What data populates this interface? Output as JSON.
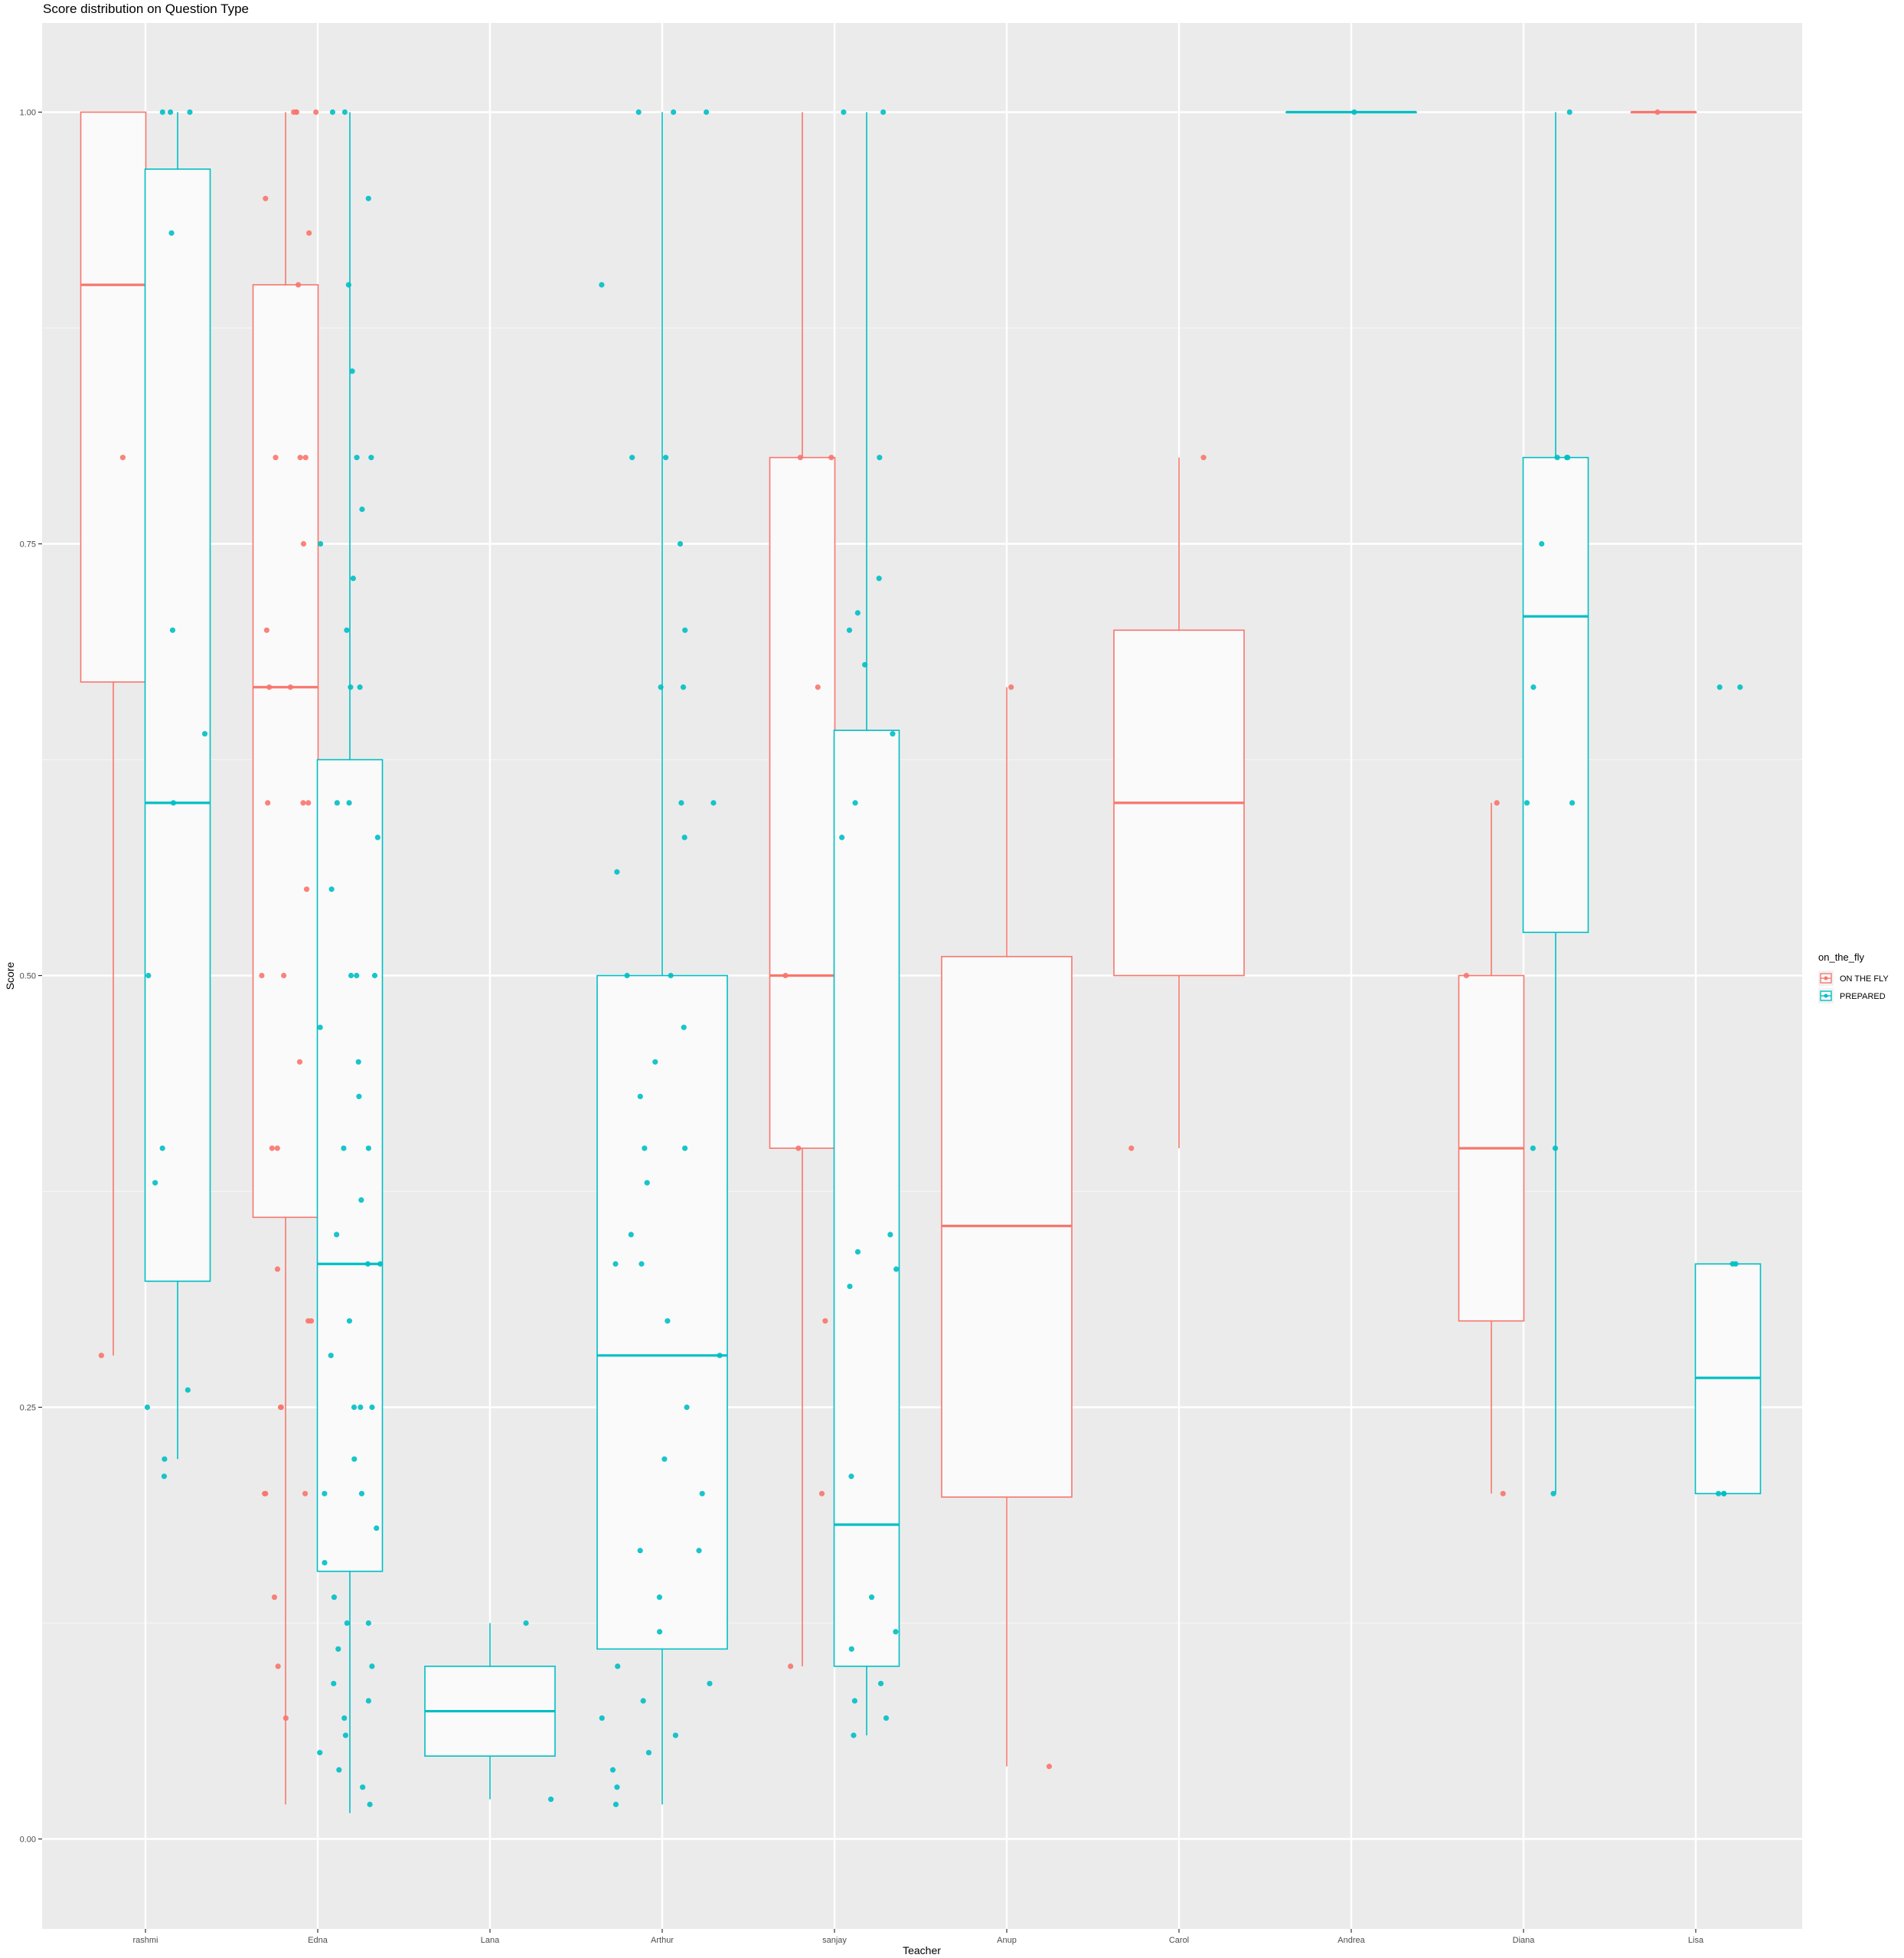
{
  "chart_data": {
    "type": "boxplot",
    "title": "Score distribution on Question Type",
    "xlabel": "Teacher",
    "ylabel": "Score",
    "ylim": [
      -0.05,
      1.05
    ],
    "yticks": [
      0.0,
      0.25,
      0.5,
      0.75,
      1.0
    ],
    "ytick_labels": [
      "0.00",
      "0.25",
      "0.50",
      "0.75",
      "1.00"
    ],
    "categories": [
      "rashmi",
      "Edna",
      "Lana",
      "Arthur",
      "sanjay",
      "Anup",
      "Carol",
      "Andrea",
      "Diana",
      "Lisa"
    ],
    "legend": {
      "title": "on_the_fly",
      "position": "right",
      "entries": [
        {
          "label": "ON THE FLY",
          "color": "#F8766D"
        },
        {
          "label": "PREPARED",
          "color": "#00BFC4"
        }
      ]
    },
    "grid": true,
    "series": [
      {
        "group": "ON THE FLY",
        "color": "#F8766D",
        "boxes": [
          {
            "category": "rashmi",
            "whisker_low": 0.28,
            "q1": 0.67,
            "median": 0.9,
            "q3": 1.0,
            "whisker_high": 1.0
          },
          {
            "category": "Edna",
            "whisker_low": 0.02,
            "q1": 0.36,
            "median": 0.667,
            "q3": 0.9,
            "whisker_high": 1.0
          },
          {
            "category": "sanjay",
            "whisker_low": 0.1,
            "q1": 0.4,
            "median": 0.5,
            "q3": 0.8,
            "whisker_high": 1.0
          },
          {
            "category": "Anup",
            "whisker_low": 0.042,
            "q1": 0.198,
            "median": 0.355,
            "q3": 0.511,
            "whisker_high": 0.667
          },
          {
            "category": "Carol",
            "whisker_low": 0.4,
            "q1": 0.5,
            "median": 0.6,
            "q3": 0.7,
            "whisker_high": 0.8
          },
          {
            "category": "Diana",
            "whisker_low": 0.2,
            "q1": 0.3,
            "median": 0.4,
            "q3": 0.5,
            "whisker_high": 0.6
          },
          {
            "category": "Lisa",
            "whisker_low": 1.0,
            "q1": 1.0,
            "median": 1.0,
            "q3": 1.0,
            "whisker_high": 1.0
          }
        ],
        "points": [
          {
            "category": "rashmi",
            "y": [
              0.8,
              0.28
            ]
          },
          {
            "category": "Edna",
            "y": [
              1.0,
              1.0,
              1.0,
              1.0,
              0.95,
              0.93,
              0.9,
              0.8,
              0.8,
              0.8,
              0.75,
              0.7,
              0.667,
              0.667,
              0.6,
              0.6,
              0.6,
              0.55,
              0.5,
              0.5,
              0.45,
              0.4,
              0.4,
              0.33,
              0.3,
              0.3,
              0.25,
              0.25,
              0.2,
              0.2,
              0.2,
              0.14,
              0.1,
              0.07
            ]
          },
          {
            "category": "sanjay",
            "y": [
              0.8,
              0.8,
              0.667,
              0.5,
              0.4,
              0.3,
              0.2,
              0.1
            ]
          },
          {
            "category": "Anup",
            "y": [
              0.667,
              0.042
            ]
          },
          {
            "category": "Carol",
            "y": [
              0.8,
              0.4
            ]
          },
          {
            "category": "Diana",
            "y": [
              0.6,
              0.5,
              0.2
            ]
          },
          {
            "category": "Lisa",
            "y": [
              1.0
            ]
          }
        ]
      },
      {
        "group": "PREPARED",
        "color": "#00BFC4",
        "boxes": [
          {
            "category": "rashmi",
            "whisker_low": 0.22,
            "q1": 0.323,
            "median": 0.6,
            "q3": 0.967,
            "whisker_high": 1.0
          },
          {
            "category": "Edna",
            "whisker_low": 0.015,
            "q1": 0.155,
            "median": 0.333,
            "q3": 0.625,
            "whisker_high": 1.0
          },
          {
            "category": "Lana",
            "whisker_low": 0.023,
            "q1": 0.048,
            "median": 0.074,
            "q3": 0.1,
            "whisker_high": 0.125
          },
          {
            "category": "Arthur",
            "whisker_low": 0.02,
            "q1": 0.11,
            "median": 0.28,
            "q3": 0.5,
            "whisker_high": 1.0
          },
          {
            "category": "sanjay",
            "whisker_low": 0.06,
            "q1": 0.1,
            "median": 0.182,
            "q3": 0.642,
            "whisker_high": 1.0
          },
          {
            "category": "Andrea",
            "whisker_low": 1.0,
            "q1": 1.0,
            "median": 1.0,
            "q3": 1.0,
            "whisker_high": 1.0
          },
          {
            "category": "Diana",
            "whisker_low": 0.2,
            "q1": 0.525,
            "median": 0.708,
            "q3": 0.8,
            "whisker_high": 1.0
          },
          {
            "category": "Lisa",
            "whisker_low": 0.2,
            "q1": 0.2,
            "median": 0.267,
            "q3": 0.333,
            "whisker_high": 0.333
          }
        ],
        "points": [
          {
            "category": "rashmi",
            "y": [
              1.0,
              1.0,
              1.0,
              0.93,
              0.7,
              0.64,
              0.6,
              0.5,
              0.4,
              0.38,
              0.26,
              0.25,
              0.22,
              0.21
            ]
          },
          {
            "category": "Edna",
            "y": [
              1.0,
              1.0,
              0.95,
              0.9,
              0.85,
              0.8,
              0.8,
              0.77,
              0.75,
              0.73,
              0.7,
              0.667,
              0.667,
              0.6,
              0.6,
              0.58,
              0.55,
              0.5,
              0.5,
              0.5,
              0.47,
              0.45,
              0.43,
              0.4,
              0.4,
              0.37,
              0.35,
              0.333,
              0.333,
              0.3,
              0.28,
              0.25,
              0.25,
              0.25,
              0.22,
              0.2,
              0.2,
              0.18,
              0.16,
              0.14,
              0.125,
              0.125,
              0.11,
              0.1,
              0.09,
              0.08,
              0.07,
              0.06,
              0.05,
              0.04,
              0.03,
              0.02
            ]
          },
          {
            "category": "Lana",
            "y": [
              0.125,
              0.023
            ]
          },
          {
            "category": "Arthur",
            "y": [
              1.0,
              1.0,
              1.0,
              0.9,
              0.8,
              0.8,
              0.75,
              0.7,
              0.667,
              0.667,
              0.6,
              0.6,
              0.58,
              0.56,
              0.5,
              0.5,
              0.47,
              0.45,
              0.43,
              0.4,
              0.4,
              0.38,
              0.35,
              0.333,
              0.333,
              0.3,
              0.28,
              0.25,
              0.22,
              0.2,
              0.167,
              0.167,
              0.14,
              0.12,
              0.1,
              0.09,
              0.08,
              0.07,
              0.06,
              0.05,
              0.04,
              0.03,
              0.02
            ]
          },
          {
            "category": "sanjay",
            "y": [
              1.0,
              1.0,
              0.8,
              0.73,
              0.71,
              0.7,
              0.68,
              0.64,
              0.6,
              0.58,
              0.35,
              0.34,
              0.33,
              0.32,
              0.21,
              0.14,
              0.12,
              0.11,
              0.09,
              0.08,
              0.07,
              0.06
            ]
          },
          {
            "category": "Andrea",
            "y": [
              1.0
            ]
          },
          {
            "category": "Diana",
            "y": [
              1.0,
              0.8,
              0.8,
              0.8,
              0.75,
              0.667,
              0.6,
              0.6,
              0.4,
              0.4,
              0.2
            ]
          },
          {
            "category": "Lisa",
            "y": [
              0.667,
              0.667,
              0.333,
              0.333,
              0.2,
              0.2,
              0.2
            ]
          }
        ]
      }
    ]
  }
}
